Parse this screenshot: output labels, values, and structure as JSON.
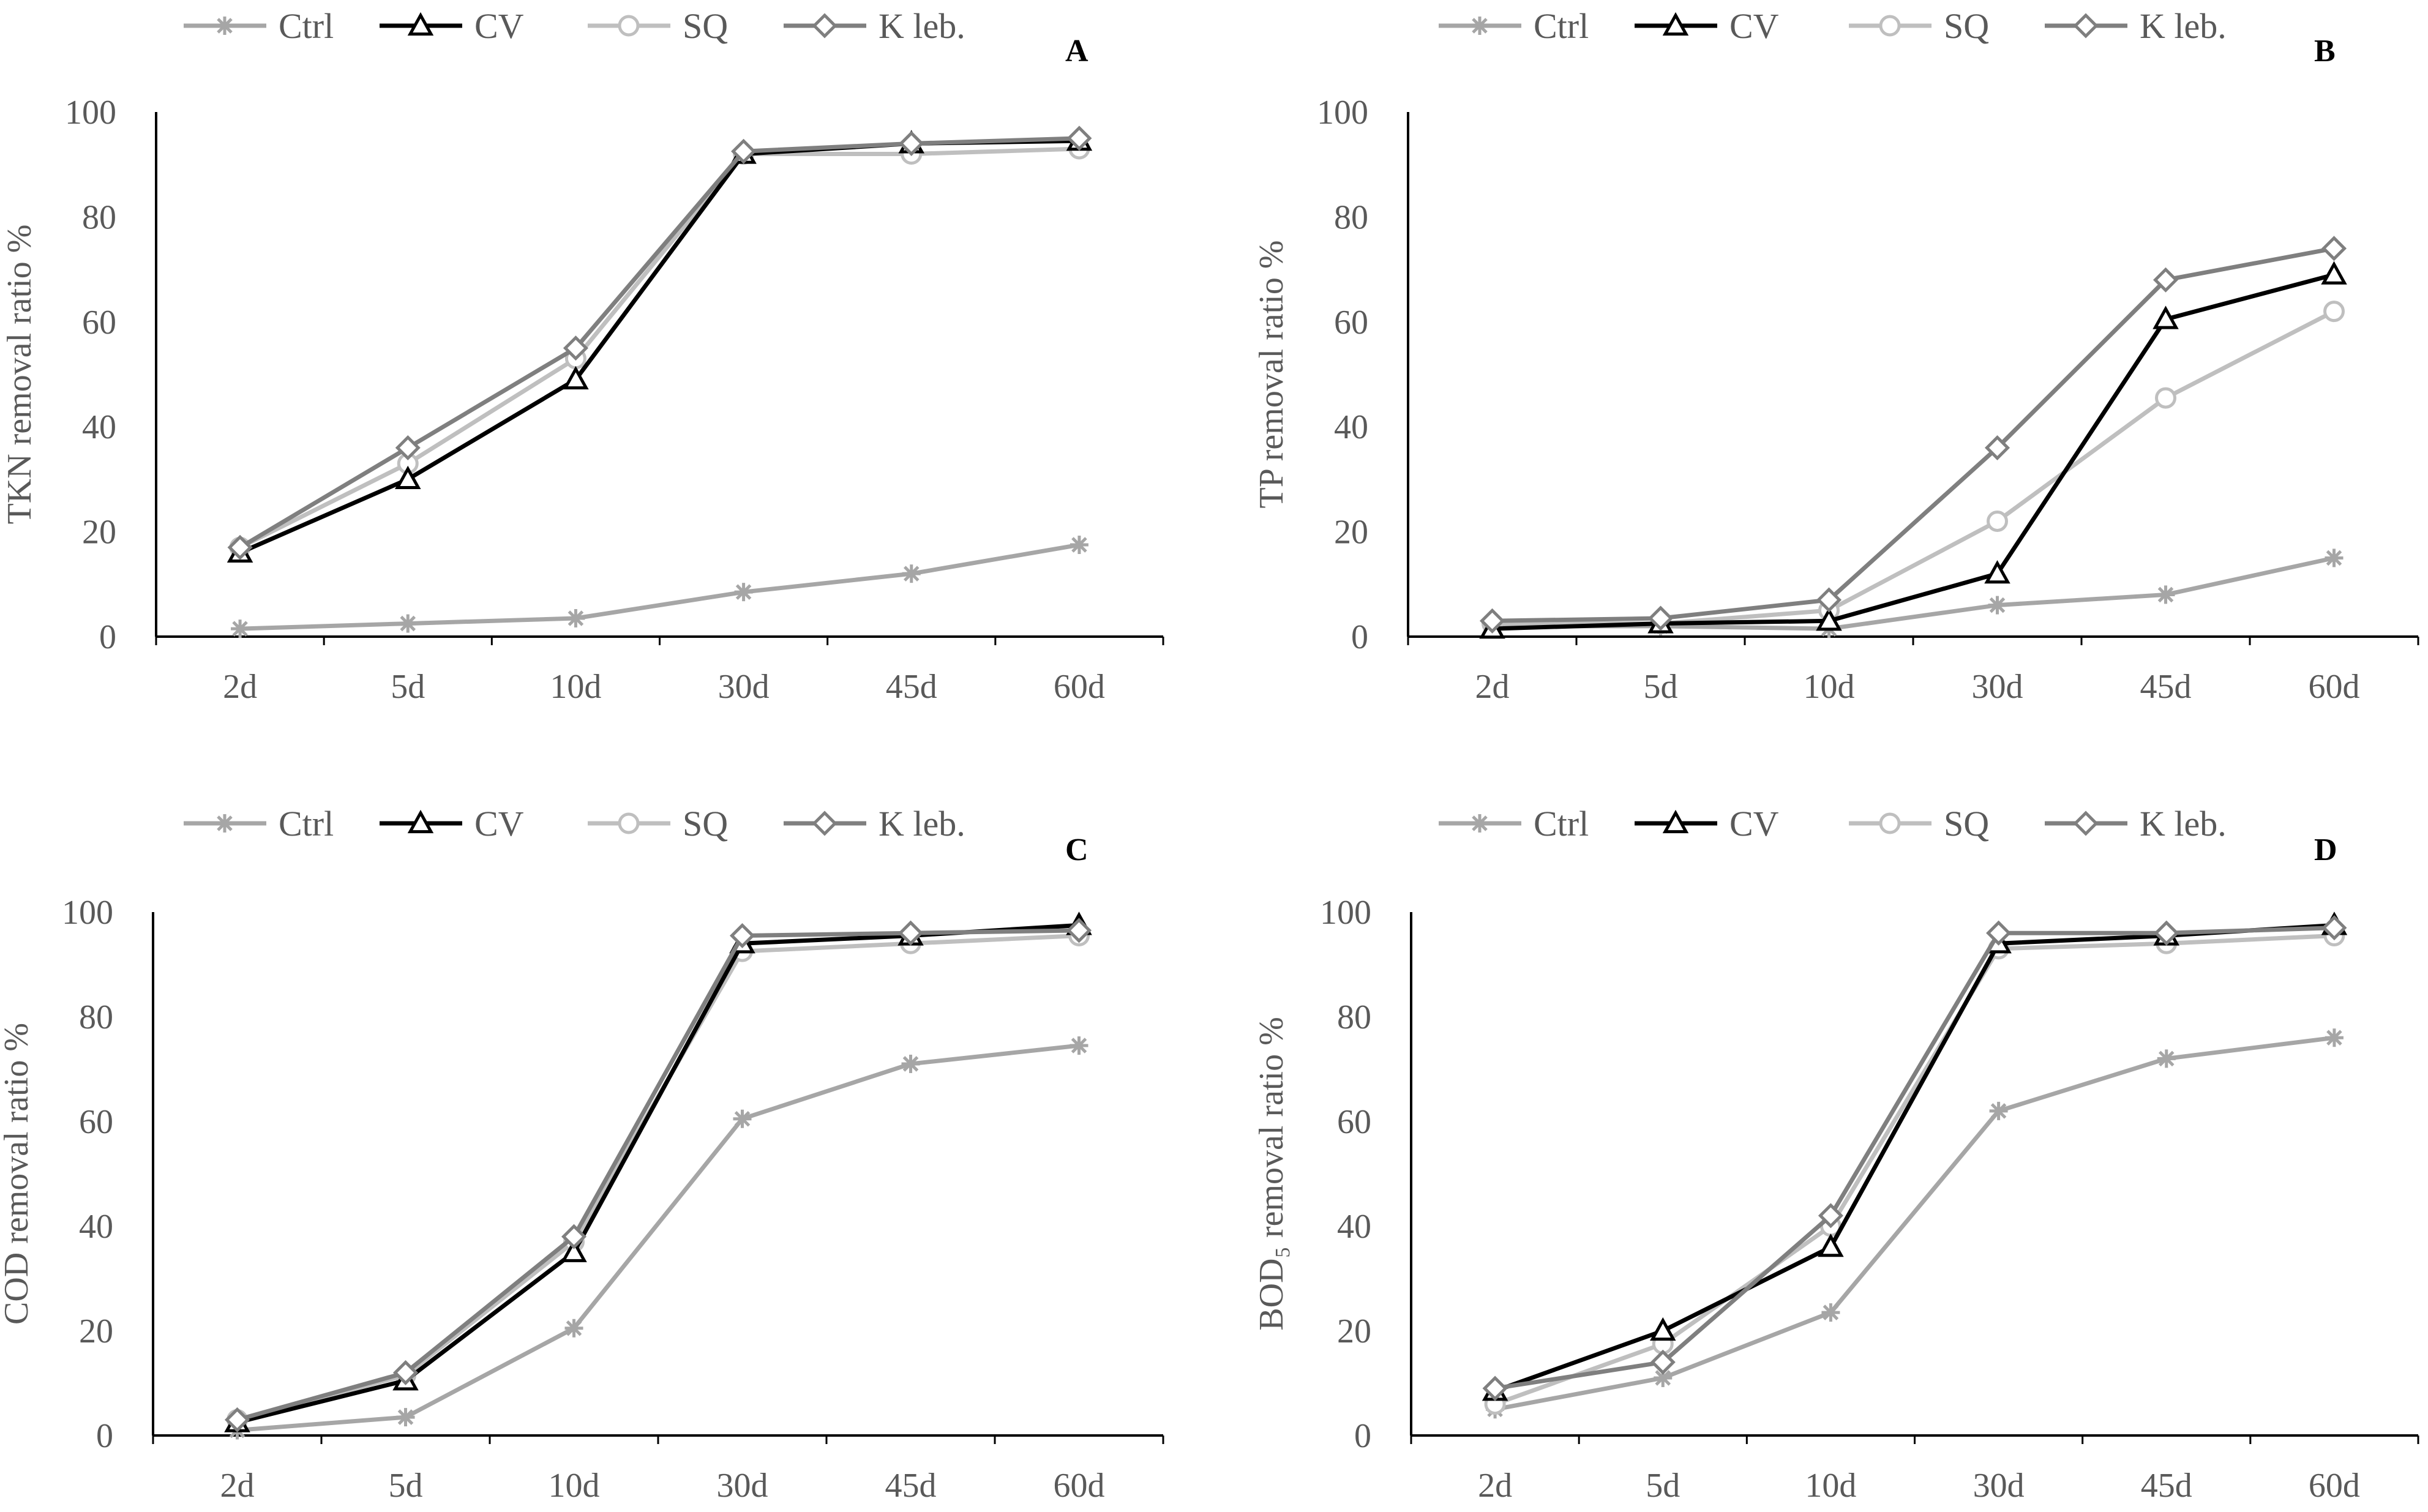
{
  "legend": [
    {
      "name": "Ctrl",
      "color": "#a6a6a6",
      "marker": "asterisk"
    },
    {
      "name": "CV",
      "color": "#000000",
      "marker": "triangle"
    },
    {
      "name": "SQ",
      "color": "#bfbfbf",
      "marker": "circle"
    },
    {
      "name": "K leb.",
      "color": "#7f7f7f",
      "marker": "diamond"
    }
  ],
  "chart_data": [
    {
      "type": "line",
      "panel": "A",
      "title": "",
      "ylabel": "TKN removal ratio %",
      "xlabel": "",
      "categories": [
        "2d",
        "5d",
        "10d",
        "30d",
        "45d",
        "60d"
      ],
      "ylim": [
        0,
        100
      ],
      "yticks": [
        0,
        20,
        40,
        60,
        80,
        100
      ],
      "series": [
        {
          "name": "Ctrl",
          "values": [
            1.5,
            2.5,
            3.5,
            8.5,
            12,
            17.5
          ]
        },
        {
          "name": "CV",
          "values": [
            16,
            30,
            49,
            92,
            94,
            94.5
          ]
        },
        {
          "name": "SQ",
          "values": [
            17,
            33,
            53,
            92,
            92,
            93
          ]
        },
        {
          "name": "K leb.",
          "values": [
            17,
            36,
            55,
            92.5,
            94,
            95
          ]
        }
      ]
    },
    {
      "type": "line",
      "panel": "B",
      "title": "",
      "ylabel": "TP removal ratio %",
      "xlabel": "",
      "categories": [
        "2d",
        "5d",
        "10d",
        "30d",
        "45d",
        "60d"
      ],
      "ylim": [
        0,
        100
      ],
      "yticks": [
        0,
        20,
        40,
        60,
        80,
        100
      ],
      "series": [
        {
          "name": "Ctrl",
          "values": [
            2,
            2,
            1.5,
            6,
            8,
            15
          ]
        },
        {
          "name": "CV",
          "values": [
            1.5,
            2.5,
            3,
            12,
            60.5,
            69
          ]
        },
        {
          "name": "SQ",
          "values": [
            2.5,
            2.5,
            5,
            22,
            45.5,
            62
          ]
        },
        {
          "name": "K leb.",
          "values": [
            3,
            3.5,
            7,
            36,
            68,
            74
          ]
        }
      ]
    },
    {
      "type": "line",
      "panel": "C",
      "title": "",
      "ylabel": "COD removal ratio %",
      "xlabel": "",
      "categories": [
        "2d",
        "5d",
        "10d",
        "30d",
        "45d",
        "60d"
      ],
      "ylim": [
        0,
        100
      ],
      "yticks": [
        0,
        20,
        40,
        60,
        80,
        100
      ],
      "series": [
        {
          "name": "Ctrl",
          "values": [
            1,
            3.5,
            20.5,
            60.5,
            71,
            74.5
          ]
        },
        {
          "name": "CV",
          "values": [
            2.5,
            10.5,
            35,
            94,
            95.5,
            97.5
          ]
        },
        {
          "name": "SQ",
          "values": [
            3,
            11.5,
            37,
            92.5,
            94,
            95.5
          ]
        },
        {
          "name": "K leb.",
          "values": [
            3,
            12,
            38,
            95.5,
            96,
            96.5
          ]
        }
      ]
    },
    {
      "type": "line",
      "panel": "D",
      "title": "",
      "ylabel": "BOD₅ removal ratio %",
      "xlabel": "",
      "categories": [
        "2d",
        "5d",
        "10d",
        "30d",
        "45d",
        "60d"
      ],
      "ylim": [
        0,
        100
      ],
      "yticks": [
        0,
        20,
        40,
        60,
        80,
        100
      ],
      "series": [
        {
          "name": "Ctrl",
          "values": [
            5,
            11,
            23.5,
            62,
            72,
            76
          ]
        },
        {
          "name": "CV",
          "values": [
            8.5,
            20,
            36,
            94,
            95.5,
            97.5
          ]
        },
        {
          "name": "SQ",
          "values": [
            6,
            17.5,
            40,
            93,
            94,
            95.5
          ]
        },
        {
          "name": "K leb.",
          "values": [
            9,
            14,
            42,
            96,
            96,
            97
          ]
        }
      ]
    }
  ]
}
